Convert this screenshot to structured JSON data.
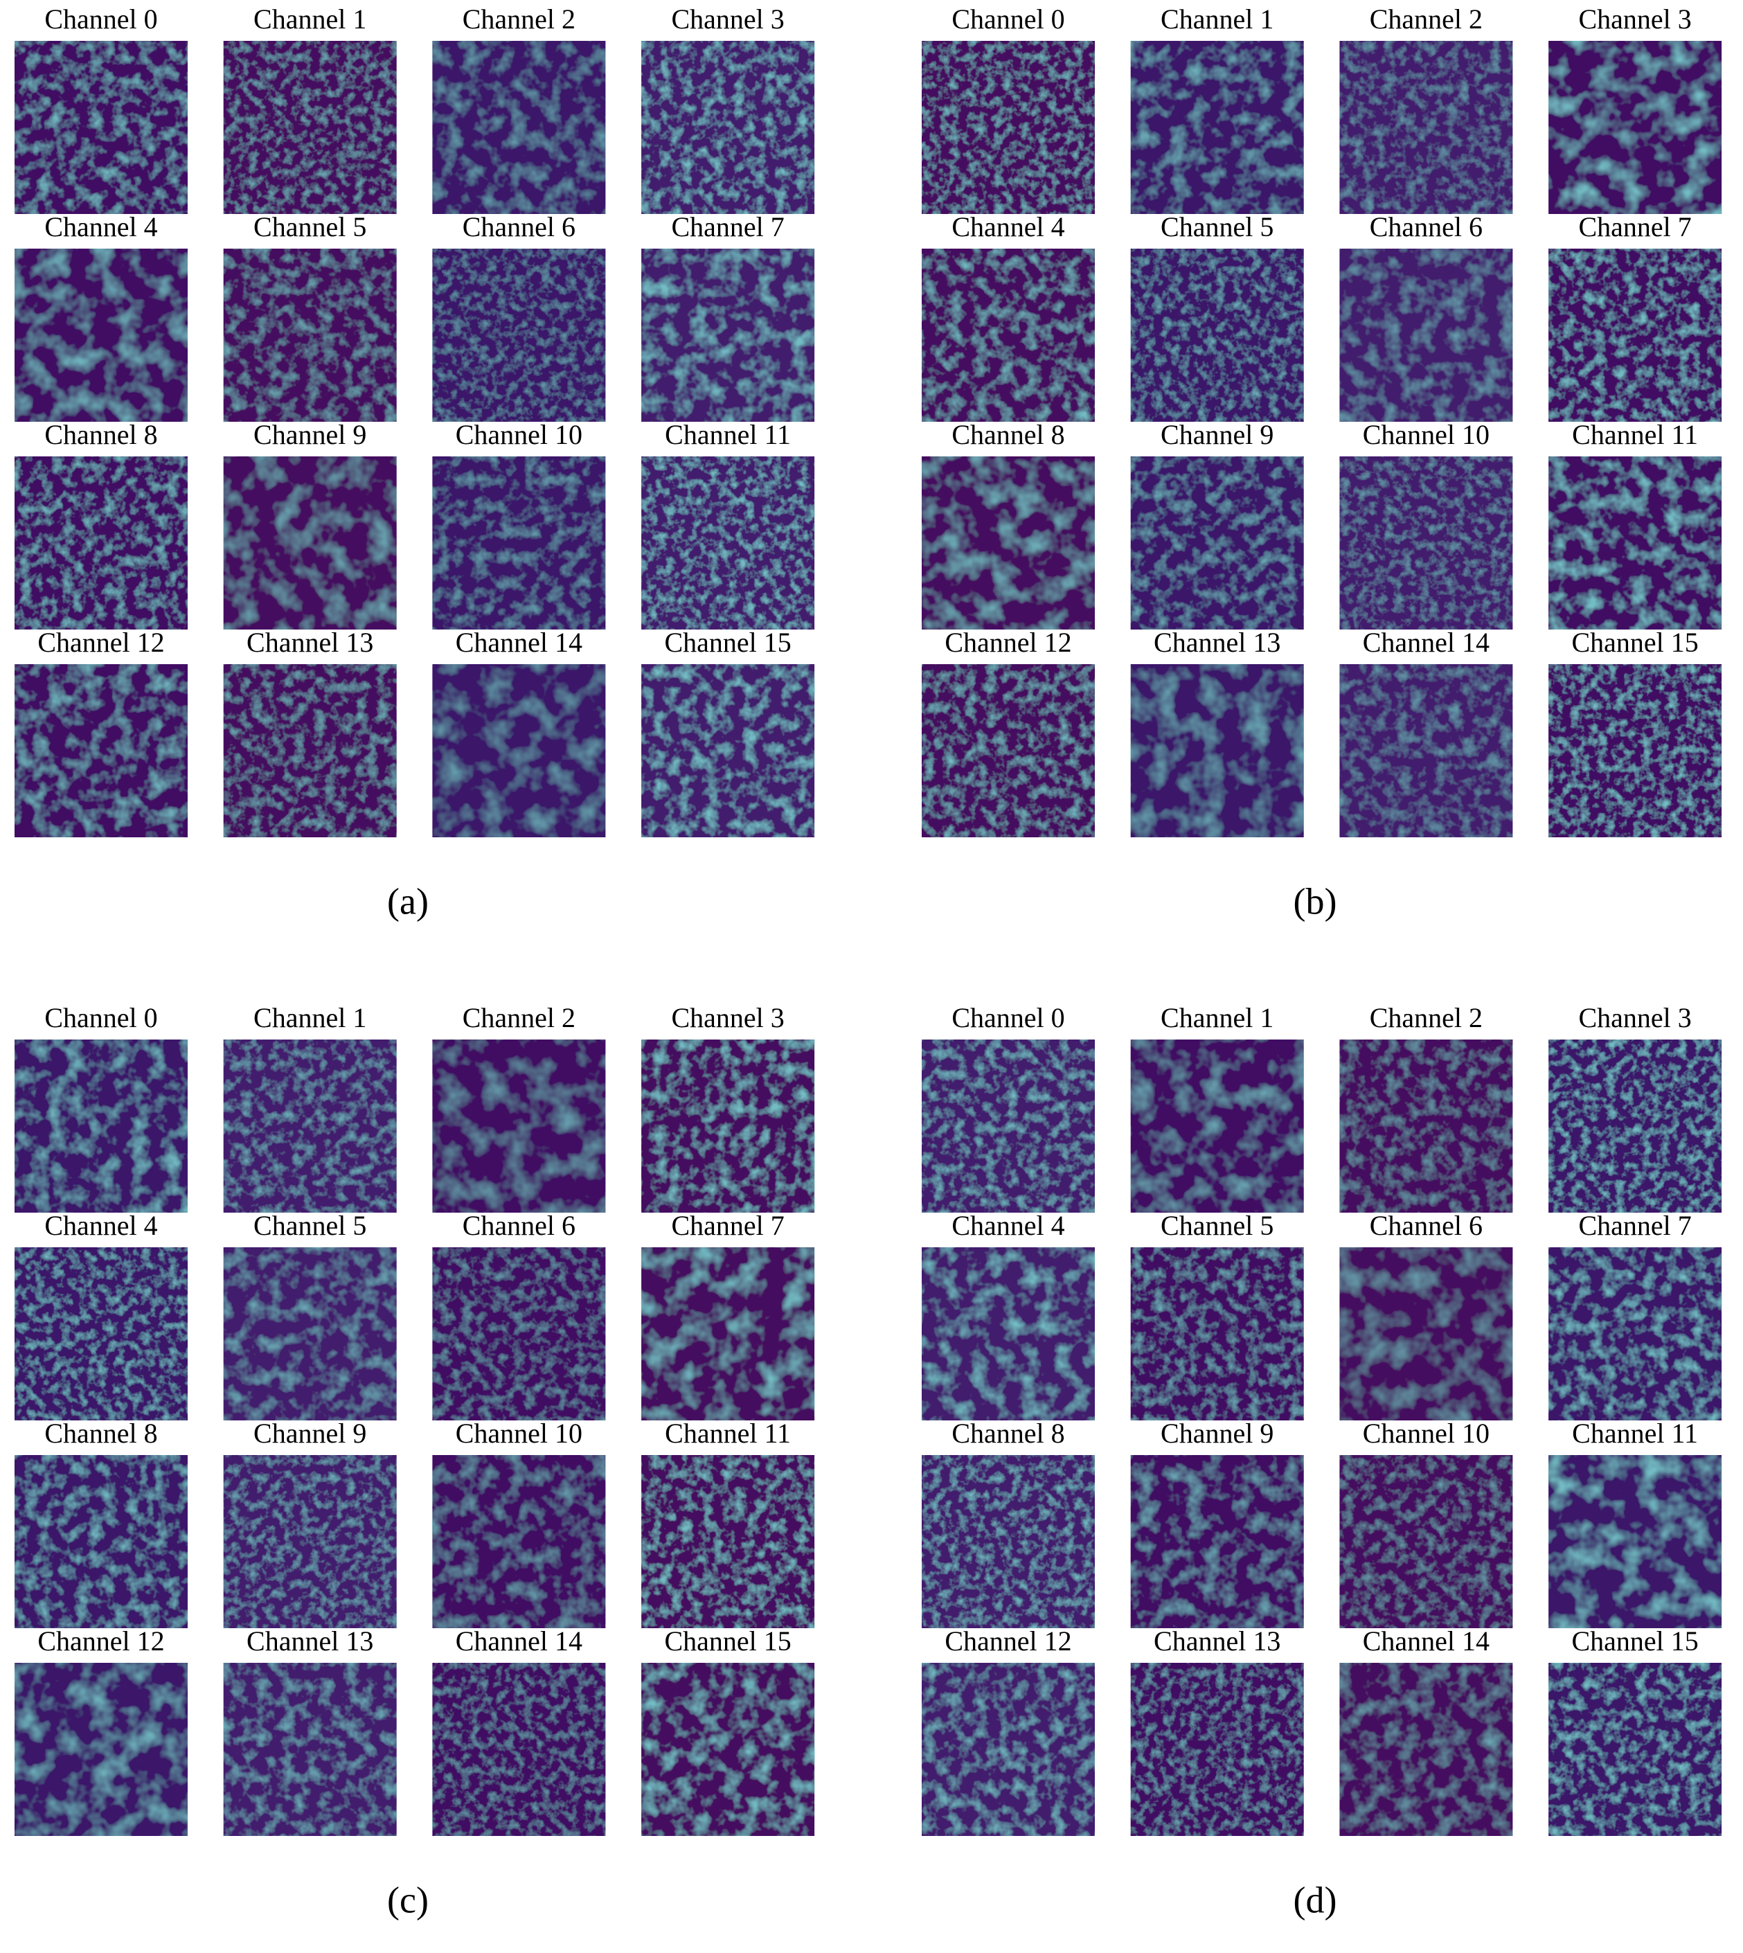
{
  "panels": [
    {
      "label": "(a)",
      "channels": [
        "Channel 0",
        "Channel 1",
        "Channel 2",
        "Channel 3",
        "Channel 4",
        "Channel 5",
        "Channel 6",
        "Channel 7",
        "Channel 8",
        "Channel 9",
        "Channel 10",
        "Channel 11",
        "Channel 12",
        "Channel 13",
        "Channel 14",
        "Channel 15"
      ]
    },
    {
      "label": "(b)",
      "channels": [
        "Channel 0",
        "Channel 1",
        "Channel 2",
        "Channel 3",
        "Channel 4",
        "Channel 5",
        "Channel 6",
        "Channel 7",
        "Channel 8",
        "Channel 9",
        "Channel 10",
        "Channel 11",
        "Channel 12",
        "Channel 13",
        "Channel 14",
        "Channel 15"
      ]
    },
    {
      "label": "(c)",
      "channels": [
        "Channel 0",
        "Channel 1",
        "Channel 2",
        "Channel 3",
        "Channel 4",
        "Channel 5",
        "Channel 6",
        "Channel 7",
        "Channel 8",
        "Channel 9",
        "Channel 10",
        "Channel 11",
        "Channel 12",
        "Channel 13",
        "Channel 14",
        "Channel 15"
      ]
    },
    {
      "label": "(d)",
      "channels": [
        "Channel 0",
        "Channel 1",
        "Channel 2",
        "Channel 3",
        "Channel 4",
        "Channel 5",
        "Channel 6",
        "Channel 7",
        "Channel 8",
        "Channel 9",
        "Channel 10",
        "Channel 11",
        "Channel 12",
        "Channel 13",
        "Channel 14",
        "Channel 15"
      ]
    }
  ]
}
